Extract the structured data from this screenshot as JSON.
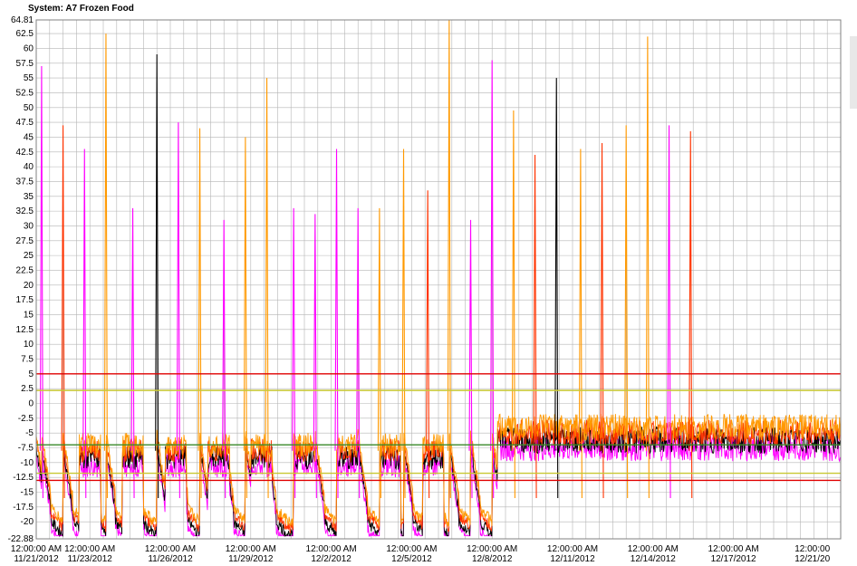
{
  "window": {
    "title": "System: A7 Frozen Food"
  },
  "chart_data": {
    "type": "line",
    "title": "System: A7 Frozen Food",
    "xlabel": "",
    "ylabel": "",
    "ylim": [
      -22.88,
      64.81
    ],
    "y_ticks": [
      "64.81",
      "62.5",
      "60",
      "57.5",
      "55",
      "52.5",
      "50",
      "47.5",
      "45",
      "42.5",
      "40",
      "37.5",
      "35",
      "32.5",
      "30",
      "27.5",
      "25",
      "22.5",
      "20",
      "17.5",
      "15",
      "12.5",
      "10",
      "7.5",
      "5",
      "2.5",
      "0",
      "-2.5",
      "-5",
      "-7.5",
      "-10",
      "-12.5",
      "-15",
      "-17.5",
      "-20",
      "-22.88"
    ],
    "x_ticks": [
      {
        "time": "12:00:00 AM",
        "date": "11/21/2012"
      },
      {
        "time": "12:00:00 AM",
        "date": "11/23/2012"
      },
      {
        "time": "12:00:00 AM",
        "date": "11/26/2012"
      },
      {
        "time": "12:00:00 AM",
        "date": "11/29/2012"
      },
      {
        "time": "12:00:00 AM",
        "date": "12/2/2012"
      },
      {
        "time": "12:00:00 AM",
        "date": "12/5/2012"
      },
      {
        "time": "12:00:00 AM",
        "date": "12/8/2012"
      },
      {
        "time": "12:00:00 AM",
        "date": "12/11/2012"
      },
      {
        "time": "12:00:00 AM",
        "date": "12/14/2012"
      },
      {
        "time": "12:00:00 AM",
        "date": "12/17/2012"
      },
      {
        "time": "12:00:00",
        "date": "12/21/20"
      }
    ],
    "thresholds": [
      {
        "value": 5,
        "color": "#e00000"
      },
      {
        "value": 2.2,
        "color": "#c8c832"
      },
      {
        "value": -7,
        "color": "#3a8a2a"
      },
      {
        "value": -11.8,
        "color": "#c8c832"
      },
      {
        "value": -13,
        "color": "#e00000"
      }
    ],
    "series_colors": [
      "#ff00ff",
      "#000000",
      "#ff3300",
      "#ff9900"
    ],
    "defrost_spikes": [
      {
        "day": 0.2,
        "peak": 57,
        "color": "#ff00ff"
      },
      {
        "day": 1.0,
        "peak": 47,
        "color": "#ff3300"
      },
      {
        "day": 1.8,
        "peak": 43,
        "color": "#ff00ff"
      },
      {
        "day": 2.6,
        "peak": 62.5,
        "color": "#ff9900"
      },
      {
        "day": 3.6,
        "peak": 33,
        "color": "#ff00ff"
      },
      {
        "day": 4.5,
        "peak": 59,
        "color": "#000000"
      },
      {
        "day": 5.3,
        "peak": 47.5,
        "color": "#ff00ff"
      },
      {
        "day": 6.1,
        "peak": 46.5,
        "color": "#ff9900"
      },
      {
        "day": 7.0,
        "peak": 31,
        "color": "#ff00ff"
      },
      {
        "day": 7.8,
        "peak": 45,
        "color": "#ff9900"
      },
      {
        "day": 8.6,
        "peak": 55,
        "color": "#ff9900"
      },
      {
        "day": 9.6,
        "peak": 33,
        "color": "#ff00ff"
      },
      {
        "day": 10.4,
        "peak": 32,
        "color": "#ff00ff"
      },
      {
        "day": 11.2,
        "peak": 43,
        "color": "#ff00ff"
      },
      {
        "day": 12.0,
        "peak": 33,
        "color": "#ff00ff"
      },
      {
        "day": 12.8,
        "peak": 33,
        "color": "#ff9900"
      },
      {
        "day": 13.7,
        "peak": 43,
        "color": "#ff9900"
      },
      {
        "day": 14.6,
        "peak": 36,
        "color": "#ff3300"
      },
      {
        "day": 15.4,
        "peak": 64.8,
        "color": "#ff9900"
      },
      {
        "day": 16.2,
        "peak": 31,
        "color": "#ff00ff"
      },
      {
        "day": 17.0,
        "peak": 58,
        "color": "#ff00ff"
      },
      {
        "day": 17.8,
        "peak": 49.5,
        "color": "#ff9900"
      },
      {
        "day": 18.6,
        "peak": 42,
        "color": "#ff3300"
      },
      {
        "day": 19.4,
        "peak": 55,
        "color": "#000000"
      },
      {
        "day": 20.3,
        "peak": 43,
        "color": "#ff9900"
      },
      {
        "day": 21.1,
        "peak": 44,
        "color": "#ff3300"
      },
      {
        "day": 22.0,
        "peak": 47,
        "color": "#ff9900"
      },
      {
        "day": 22.8,
        "peak": 62,
        "color": "#ff9900"
      },
      {
        "day": 23.6,
        "peak": 47,
        "color": "#ff00ff"
      },
      {
        "day": 24.4,
        "peak": 46,
        "color": "#ff3300"
      }
    ],
    "day_span": 30,
    "grid": true
  }
}
